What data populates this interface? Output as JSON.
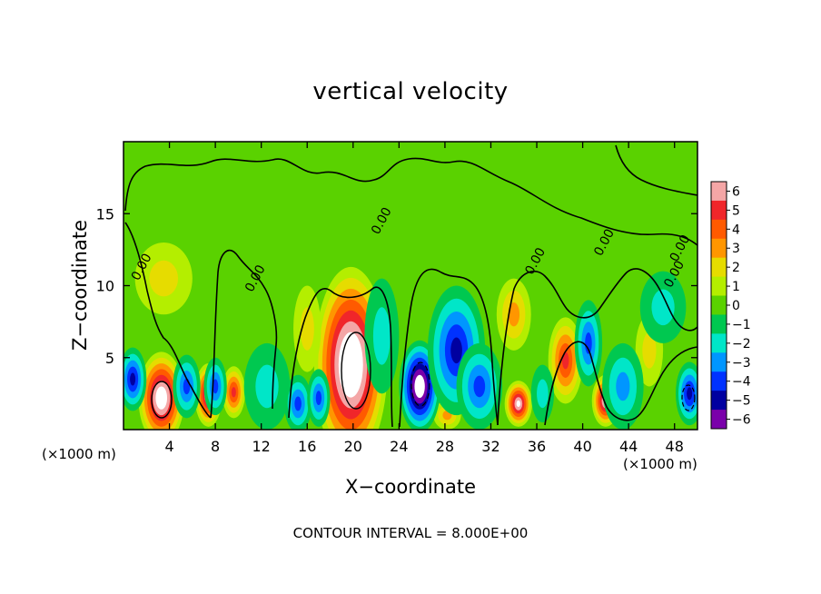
{
  "chart_data": {
    "type": "heatmap",
    "title": "vertical velocity",
    "xlabel": "X−coordinate",
    "ylabel": "Z−coordinate",
    "x_unit_left": "(×1000 m)",
    "x_unit_right": "(×1000 m)",
    "footer": "CONTOUR INTERVAL = 8.000E+00",
    "xlim": [
      0,
      50
    ],
    "ylim": [
      0,
      20
    ],
    "x_ticks": [
      4,
      8,
      12,
      16,
      20,
      24,
      28,
      32,
      36,
      40,
      44,
      48
    ],
    "x_tick_labels": [
      "4",
      "8",
      "12",
      "16",
      "20",
      "24",
      "28",
      "32",
      "36",
      "40",
      "44",
      "48"
    ],
    "y_ticks": [
      5,
      10,
      15
    ],
    "y_tick_labels": [
      "5",
      "10",
      "15"
    ],
    "colorbar": {
      "min": -6,
      "max": 6,
      "labels": [
        "6",
        "5",
        "4",
        "3",
        "2",
        "1",
        "0",
        "−1",
        "−2",
        "−3",
        "−4",
        "−5",
        "−6"
      ],
      "colors": [
        "#f4a6a6",
        "#f0262a",
        "#ff5a00",
        "#ff9600",
        "#e6dc00",
        "#b4ee00",
        "#5ad200",
        "#00c850",
        "#00e6c8",
        "#0096ff",
        "#0032ff",
        "#0000a0",
        "#7a00aa"
      ]
    },
    "contour_labels": [
      {
        "text": "0.00",
        "x": 1.3,
        "y": 10.3
      },
      {
        "text": "0.00",
        "x": 11.2,
        "y": 9.5
      },
      {
        "text": "0.00",
        "x": 22.2,
        "y": 13.5
      },
      {
        "text": "0.00",
        "x": 35.6,
        "y": 10.7
      },
      {
        "text": "0.00",
        "x": 41.6,
        "y": 12.0
      },
      {
        "text": "0.00",
        "x": 48.2,
        "y": 11.6
      },
      {
        "text": "0.00",
        "x": 47.7,
        "y": 9.8
      }
    ],
    "features": [
      {
        "sign": "pos",
        "x": 3.3,
        "y": 2.2,
        "rx": 2.0,
        "ry": 3.2,
        "peak": 8
      },
      {
        "sign": "pos",
        "x": 7.4,
        "y": 2.4,
        "rx": 1.2,
        "ry": 2.2,
        "peak": 7
      },
      {
        "sign": "pos",
        "x": 9.6,
        "y": 2.6,
        "rx": 1.0,
        "ry": 1.8,
        "peak": 4.5
      },
      {
        "sign": "pos",
        "x": 19.8,
        "y": 4.5,
        "rx": 3.2,
        "ry": 6.8,
        "peak": 9
      },
      {
        "sign": "pos",
        "x": 34.4,
        "y": 1.8,
        "rx": 1.2,
        "ry": 1.6,
        "peak": 7
      },
      {
        "sign": "pos",
        "x": 38.5,
        "y": 4.8,
        "rx": 1.5,
        "ry": 3.0,
        "peak": 5
      },
      {
        "sign": "pos",
        "x": 42.0,
        "y": 2.0,
        "rx": 1.2,
        "ry": 1.8,
        "peak": 6.5
      },
      {
        "sign": "pos",
        "x": 34.0,
        "y": 8.0,
        "rx": 1.5,
        "ry": 2.5,
        "peak": 2.2
      },
      {
        "sign": "pos",
        "x": 3.5,
        "y": 10.5,
        "rx": 2.5,
        "ry": 2.5,
        "peak": 1.4
      },
      {
        "sign": "pos",
        "x": 16.0,
        "y": 7.0,
        "rx": 1.2,
        "ry": 3.0,
        "peak": 1.8
      },
      {
        "sign": "pos",
        "x": 28.2,
        "y": 1.0,
        "rx": 1.2,
        "ry": 1.0,
        "peak": 2.2
      },
      {
        "sign": "pos",
        "x": 45.8,
        "y": 5.5,
        "rx": 1.2,
        "ry": 2.5,
        "peak": 1.6
      },
      {
        "sign": "neg",
        "x": 25.8,
        "y": 3.0,
        "rx": 1.8,
        "ry": 3.2,
        "peak": 8
      },
      {
        "sign": "neg",
        "x": 29.0,
        "y": 5.5,
        "rx": 2.5,
        "ry": 4.5,
        "peak": 4.2
      },
      {
        "sign": "neg",
        "x": 31.0,
        "y": 3.0,
        "rx": 2.0,
        "ry": 3.0,
        "peak": 3.5
      },
      {
        "sign": "neg",
        "x": 40.5,
        "y": 6.0,
        "rx": 1.2,
        "ry": 3.0,
        "peak": 4
      },
      {
        "sign": "neg",
        "x": 43.5,
        "y": 3.0,
        "rx": 1.8,
        "ry": 3.0,
        "peak": 2.8
      },
      {
        "sign": "neg",
        "x": 0.8,
        "y": 3.5,
        "rx": 1.2,
        "ry": 2.2,
        "peak": 4.5
      },
      {
        "sign": "neg",
        "x": 5.5,
        "y": 3.0,
        "rx": 1.2,
        "ry": 2.2,
        "peak": 3.5
      },
      {
        "sign": "neg",
        "x": 8.0,
        "y": 3.0,
        "rx": 1.0,
        "ry": 2.0,
        "peak": 3.5
      },
      {
        "sign": "neg",
        "x": 12.5,
        "y": 3.0,
        "rx": 2.0,
        "ry": 3.0,
        "peak": 2.0
      },
      {
        "sign": "neg",
        "x": 15.2,
        "y": 1.8,
        "rx": 1.2,
        "ry": 2.0,
        "peak": 3.5
      },
      {
        "sign": "neg",
        "x": 17.0,
        "y": 2.2,
        "rx": 1.0,
        "ry": 2.0,
        "peak": 3.5
      },
      {
        "sign": "neg",
        "x": 49.3,
        "y": 2.5,
        "rx": 1.2,
        "ry": 2.2,
        "peak": 5
      },
      {
        "sign": "neg",
        "x": 22.5,
        "y": 6.5,
        "rx": 1.5,
        "ry": 4.0,
        "peak": 1.5
      },
      {
        "sign": "neg",
        "x": 36.5,
        "y": 2.5,
        "rx": 1.0,
        "ry": 2.0,
        "peak": 2.0
      },
      {
        "sign": "neg",
        "x": 47.0,
        "y": 8.5,
        "rx": 2.0,
        "ry": 2.5,
        "peak": 1.1
      }
    ]
  }
}
